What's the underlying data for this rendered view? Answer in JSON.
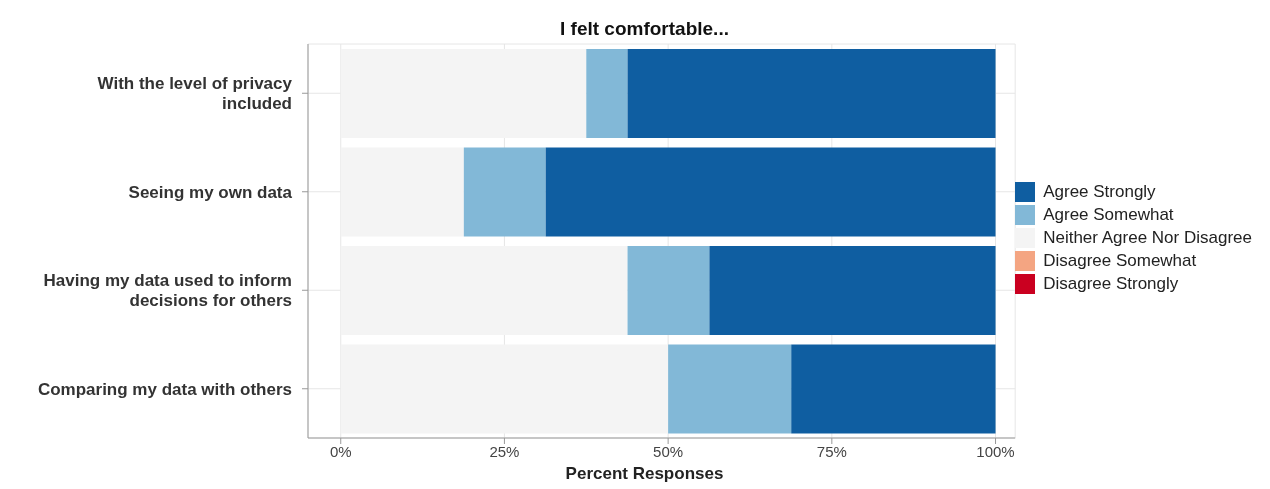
{
  "chart_data": {
    "type": "bar",
    "orientation": "horizontal",
    "stacked": true,
    "title": "I felt comfortable...",
    "xlabel": "Percent Responses",
    "categories": [
      "With the level of privacy included",
      "Seeing my own data",
      "Having my data used to inform decisions for others",
      "Comparing my data with others"
    ],
    "series": [
      {
        "name": "Disagree Strongly",
        "color": "#ca0020",
        "values": [
          0,
          0,
          0,
          0
        ]
      },
      {
        "name": "Disagree Somewhat",
        "color": "#f4a582",
        "values": [
          0,
          0,
          0,
          0
        ]
      },
      {
        "name": "Neither Agree Nor Disagree",
        "color": "#f4f4f4",
        "values": [
          37.5,
          18.8,
          43.8,
          50
        ]
      },
      {
        "name": "Agree Somewhat",
        "color": "#82b8d7",
        "values": [
          6.3,
          12.5,
          12.5,
          18.8
        ]
      },
      {
        "name": "Agree Strongly",
        "color": "#0f5ea1",
        "values": [
          56.2,
          68.7,
          43.7,
          31.2
        ]
      }
    ],
    "xlim": [
      -5,
      103
    ],
    "xticks": [
      {
        "value": 0,
        "label": "0%"
      },
      {
        "value": 25,
        "label": "25%"
      },
      {
        "value": 50,
        "label": "50%"
      },
      {
        "value": 75,
        "label": "75%"
      },
      {
        "value": 100,
        "label": "100%"
      }
    ],
    "grid": true,
    "legend": "right"
  }
}
